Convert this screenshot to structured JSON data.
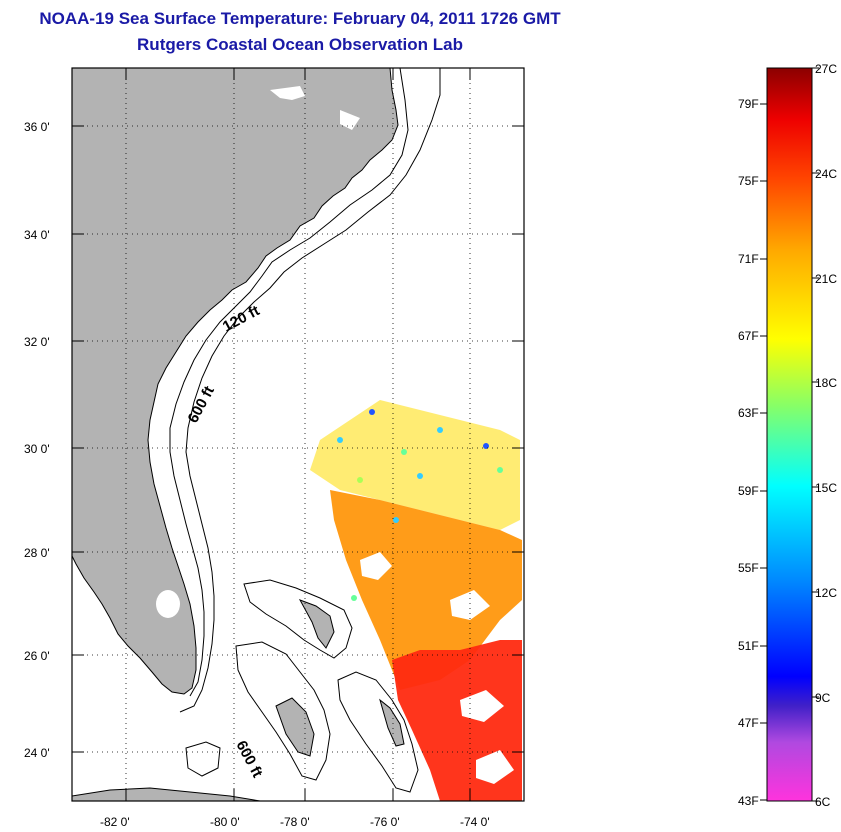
{
  "title": {
    "line1": "NOAA-19 Sea Surface Temperature:  February 04, 2011 1726 GMT",
    "line2": "Rutgers Coastal Ocean Observation Lab"
  },
  "map": {
    "lat_ticks": [
      "36 0'",
      "34 0'",
      "32 0'",
      "30 0'",
      "28 0'",
      "26 0'",
      "24 0'"
    ],
    "lon_ticks": [
      "-82 0'",
      "-80 0'",
      "-78 0'",
      "-76 0'",
      "-74 0'"
    ],
    "depth_labels": {
      "shelf_120": "120 ft",
      "shelf_600": "600 ft",
      "bahamas_600": "600 ft"
    },
    "colors": {
      "land": "#b3b3b3",
      "ocean": "#ffffff",
      "contour": "#000000"
    }
  },
  "colorbar": {
    "fahrenheit": [
      "79F",
      "75F",
      "71F",
      "67F",
      "63F",
      "59F",
      "55F",
      "51F",
      "47F",
      "43F"
    ],
    "celsius": [
      "27C",
      "24C",
      "21C",
      "18C",
      "15C",
      "12C",
      "9C",
      "6C"
    ],
    "range_c": [
      6,
      27
    ],
    "colors": [
      "#ff33cc",
      "#b84dd6",
      "#5a2fd6",
      "#0000ff",
      "#0090ff",
      "#00e8ff",
      "#66ff99",
      "#ffff00",
      "#ffa500",
      "#ff5500",
      "#ff0000",
      "#8b0000"
    ]
  }
}
